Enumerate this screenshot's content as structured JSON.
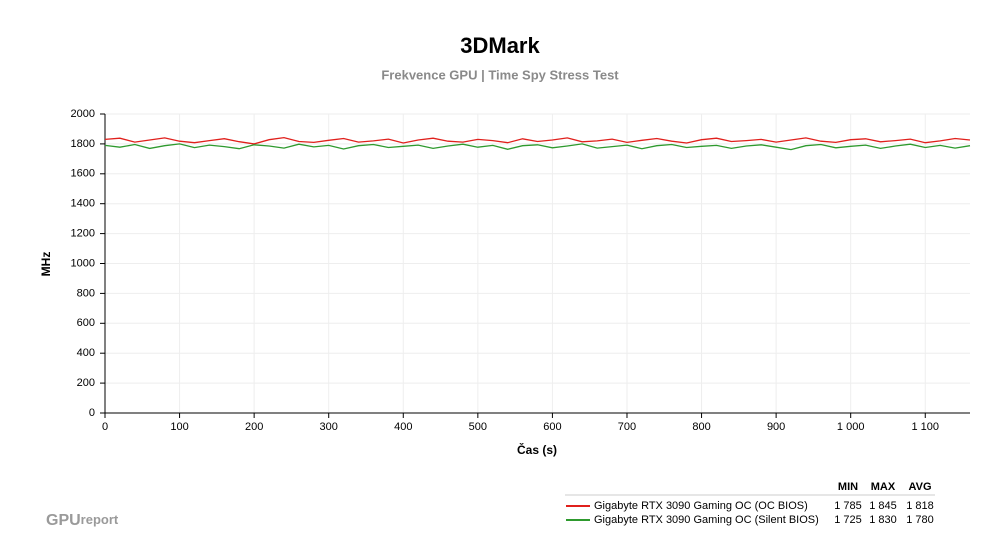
{
  "chart_data": {
    "type": "line",
    "title": "3DMark",
    "subtitle": "Frekvence GPU | Time Spy Stress Test",
    "y_label": "MHz",
    "x_label": "Čas (s)",
    "x": [
      0,
      20,
      40,
      60,
      80,
      100,
      120,
      140,
      160,
      180,
      200,
      220,
      240,
      260,
      280,
      300,
      320,
      340,
      360,
      380,
      400,
      420,
      440,
      460,
      480,
      500,
      520,
      540,
      560,
      580,
      600,
      620,
      640,
      660,
      680,
      700,
      720,
      740,
      760,
      780,
      800,
      820,
      840,
      860,
      880,
      900,
      920,
      940,
      960,
      980,
      1000,
      1020,
      1040,
      1060,
      1080,
      1100,
      1120,
      1140,
      1160
    ],
    "series": [
      {
        "name": "Gigabyte RTX 3090 Gaming OC (OC BIOS)",
        "color": "#e0201c",
        "values": [
          1830,
          1838,
          1812,
          1826,
          1840,
          1818,
          1808,
          1822,
          1835,
          1815,
          1800,
          1828,
          1842,
          1816,
          1810,
          1824,
          1836,
          1812,
          1820,
          1832,
          1806,
          1826,
          1838,
          1818,
          1812,
          1830,
          1822,
          1808,
          1834,
          1816,
          1826,
          1840,
          1814,
          1820,
          1832,
          1810,
          1824,
          1836,
          1818,
          1806,
          1828,
          1838,
          1816,
          1822,
          1830,
          1812,
          1826,
          1840,
          1818,
          1810,
          1828,
          1834,
          1814,
          1822,
          1832,
          1808,
          1820,
          1836,
          1826
        ]
      },
      {
        "name": "Gigabyte RTX 3090 Gaming OC (Silent BIOS)",
        "color": "#2e9a2e",
        "values": [
          1790,
          1778,
          1796,
          1770,
          1788,
          1800,
          1775,
          1792,
          1782,
          1768,
          1794,
          1786,
          1772,
          1798,
          1780,
          1790,
          1766,
          1788,
          1796,
          1776,
          1784,
          1792,
          1770,
          1786,
          1798,
          1778,
          1790,
          1764,
          1788,
          1794,
          1774,
          1786,
          1800,
          1772,
          1782,
          1792,
          1768,
          1788,
          1796,
          1776,
          1784,
          1790,
          1770,
          1786,
          1794,
          1778,
          1762,
          1788,
          1796,
          1774,
          1784,
          1792,
          1770,
          1786,
          1798,
          1776,
          1790,
          1772,
          1788
        ]
      }
    ],
    "xlim": [
      0,
      1160
    ],
    "xticks": [
      0,
      100,
      200,
      300,
      400,
      500,
      600,
      700,
      800,
      900,
      {
        "value": 1000,
        "label": "1 000"
      },
      {
        "value": 1100,
        "label": "1 100"
      }
    ],
    "ylim": [
      0,
      2000
    ],
    "yticks": [
      0,
      200,
      400,
      600,
      800,
      1000,
      1200,
      1400,
      1600,
      1800,
      2000
    ],
    "grid": true,
    "stats_headers": [
      "MIN",
      "MAX",
      "AVG"
    ],
    "stats": [
      [
        {
          "value": 1785,
          "label": "1 785"
        },
        {
          "value": 1845,
          "label": "1 845"
        },
        {
          "value": 1818,
          "label": "1 818"
        }
      ],
      [
        {
          "value": 1725,
          "label": "1 725"
        },
        {
          "value": 1830,
          "label": "1 830"
        },
        {
          "value": 1780,
          "label": "1 780"
        }
      ]
    ],
    "watermark": [
      "GPU",
      "report"
    ]
  }
}
